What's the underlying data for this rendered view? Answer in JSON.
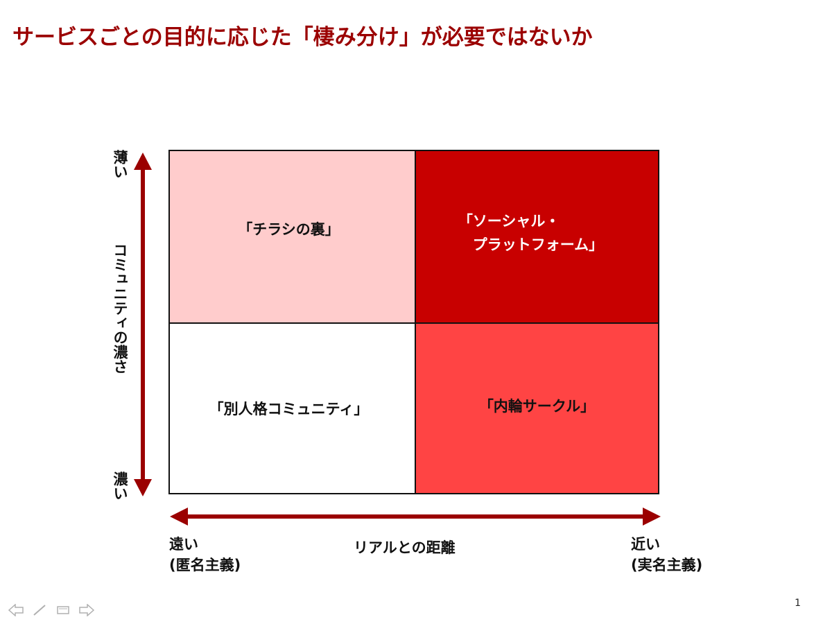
{
  "slide": {
    "title": "サービスごとの目的に応じた「棲み分け」が必要ではないか",
    "page_number": "1"
  },
  "matrix": {
    "cells": [
      {
        "position": "top-left",
        "label": "「チラシの裏」",
        "fill": "#ffcccc"
      },
      {
        "position": "top-right",
        "label": "「ソーシャル・\n　プラットフォーム」",
        "fill": "#c80000",
        "text_color": "#ffffff"
      },
      {
        "position": "bottom-left",
        "label": "「別人格コミュニティ」",
        "fill": "#ffffff"
      },
      {
        "position": "bottom-right",
        "label": "「内輪サークル」",
        "fill": "#ff4444"
      }
    ]
  },
  "axes": {
    "vertical": {
      "label": "コミュニティの濃さ",
      "top": "薄い",
      "bottom": "濃い"
    },
    "horizontal": {
      "label": "リアルとの距離",
      "left_line1": "遠い",
      "left_line2": "(匿名主義)",
      "right_line1": "近い",
      "right_line2": "(実名主義)"
    },
    "arrow_color": "#9b0000"
  },
  "nav": {
    "icons": [
      "arrow-left-icon",
      "pen-icon",
      "menu-icon",
      "arrow-right-icon"
    ]
  }
}
